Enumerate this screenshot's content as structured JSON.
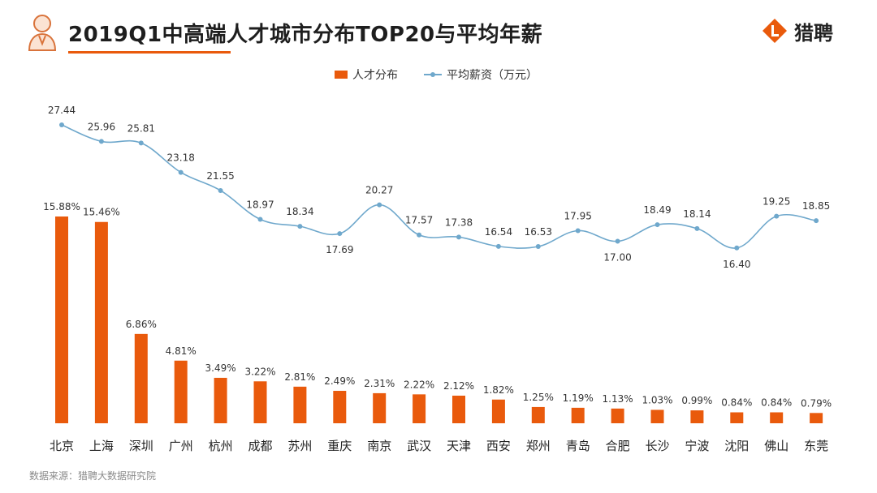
{
  "header": {
    "title": "2019Q1中高端人才城市分布TOP20与平均年薪",
    "logo_text": "猎聘"
  },
  "legend": {
    "bar_label": "人才分布",
    "line_label": "平均薪资（万元）"
  },
  "source": "数据来源：猎聘大数据研究院",
  "colors": {
    "bar": "#e95a0c",
    "line": "#6fa8cc",
    "accent": "#e95a0c"
  },
  "chart_data": {
    "type": "bar",
    "categories": [
      "北京",
      "上海",
      "深圳",
      "广州",
      "杭州",
      "成都",
      "苏州",
      "重庆",
      "南京",
      "武汉",
      "天津",
      "西安",
      "郑州",
      "青岛",
      "合肥",
      "长沙",
      "宁波",
      "沈阳",
      "佛山",
      "东莞"
    ],
    "series": [
      {
        "name": "人才分布",
        "type": "bar",
        "values": [
          15.88,
          15.46,
          6.86,
          4.81,
          3.49,
          3.22,
          2.81,
          2.49,
          2.31,
          2.22,
          2.12,
          1.82,
          1.25,
          1.19,
          1.13,
          1.03,
          0.99,
          0.84,
          0.84,
          0.79
        ],
        "labels": [
          "15.88%",
          "15.46%",
          "6.86%",
          "4.81%",
          "3.49%",
          "3.22%",
          "2.81%",
          "2.49%",
          "2.31%",
          "2.22%",
          "2.12%",
          "1.82%",
          "1.25%",
          "1.19%",
          "1.13%",
          "1.03%",
          "0.99%",
          "0.84%",
          "0.84%",
          "0.79%"
        ]
      },
      {
        "name": "平均薪资（万元）",
        "type": "line",
        "values": [
          27.44,
          25.96,
          25.81,
          23.18,
          21.55,
          18.97,
          18.34,
          17.69,
          20.27,
          17.57,
          17.38,
          16.54,
          16.53,
          17.95,
          17.0,
          18.49,
          18.14,
          16.4,
          19.25,
          18.85
        ],
        "labels": [
          "27.44",
          "25.96",
          "25.81",
          "23.18",
          "21.55",
          "18.97",
          "18.34",
          "17.69",
          "20.27",
          "17.57",
          "17.38",
          "16.54",
          "16.53",
          "17.95",
          "17.00",
          "18.49",
          "18.14",
          "16.40",
          "19.25",
          "18.85"
        ],
        "label_position": [
          "above",
          "above",
          "above",
          "above",
          "above",
          "above",
          "above",
          "below",
          "above",
          "above",
          "above",
          "above",
          "above",
          "above",
          "below",
          "above",
          "above",
          "below",
          "above",
          "above"
        ]
      }
    ],
    "legend_position": "top-center",
    "grid": false
  }
}
